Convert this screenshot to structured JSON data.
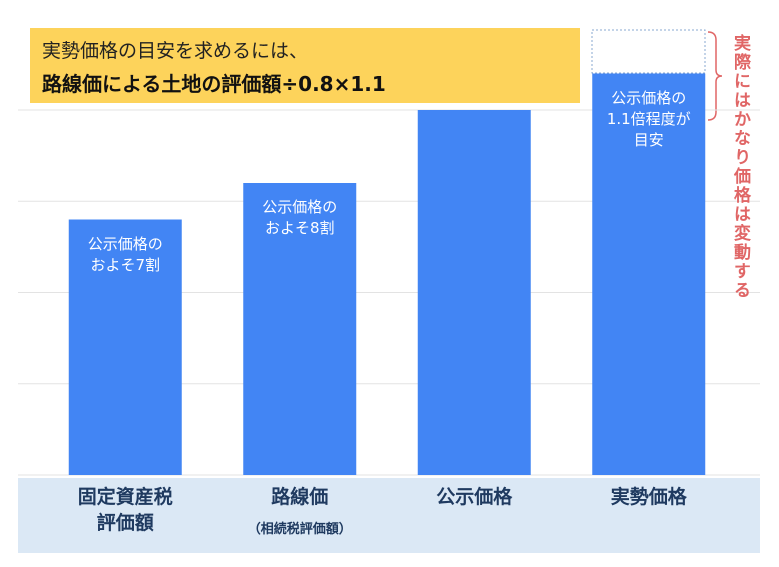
{
  "chart_data": {
    "type": "bar",
    "title": "実勢価格の目安を求めるには、",
    "subtitle": "路線価による土地の評価額÷0.8×1.1",
    "categories": [
      "固定資産税\n評価額",
      "路線価",
      "公示価格",
      "実勢価格"
    ],
    "category_notes": [
      null,
      "（相続税評価額）",
      null,
      null
    ],
    "values": [
      7,
      8,
      10,
      11
    ],
    "bar_labels": [
      "公示価格の\nおよそ7割",
      "公示価格の\nおよそ8割",
      null,
      "公示価格の\n1.1倍程度が\n目安"
    ],
    "annotation": "実際にはかなり価格は変動する",
    "color": "#4285f4",
    "ylim": [
      0,
      10
    ],
    "yticks": [
      0,
      2.5,
      5,
      7.5,
      10
    ],
    "grid": true
  }
}
